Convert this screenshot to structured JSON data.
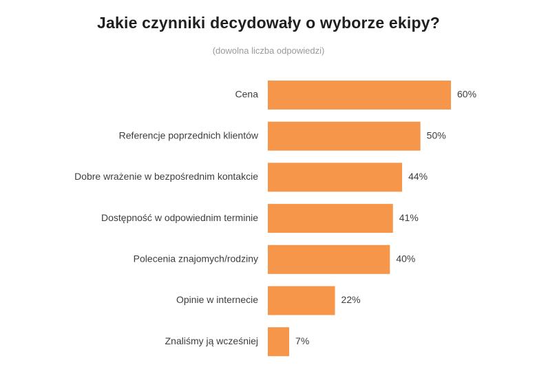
{
  "chart_data": {
    "type": "bar",
    "orientation": "horizontal",
    "title": "Jakie czynniki decydowały o wyborze ekipy?",
    "subtitle": "(dowolna liczba odpowiedzi)",
    "categories": [
      "Cena",
      "Referencje poprzednich klientów",
      "Dobre wrażenie w bezpośrednim kontakcie",
      "Dostępność w odpowiednim terminie",
      "Polecenia znajomych/rodziny",
      "Opinie w internecie",
      "Znaliśmy ją wcześniej"
    ],
    "values": [
      60,
      50,
      44,
      41,
      40,
      22,
      7
    ],
    "value_labels": [
      "60%",
      "50%",
      "44%",
      "41%",
      "40%",
      "22%",
      "7%"
    ],
    "unit": "%",
    "xlim": [
      0,
      60
    ],
    "grid": false,
    "legend": "none",
    "bar_color": "#f5964a"
  }
}
